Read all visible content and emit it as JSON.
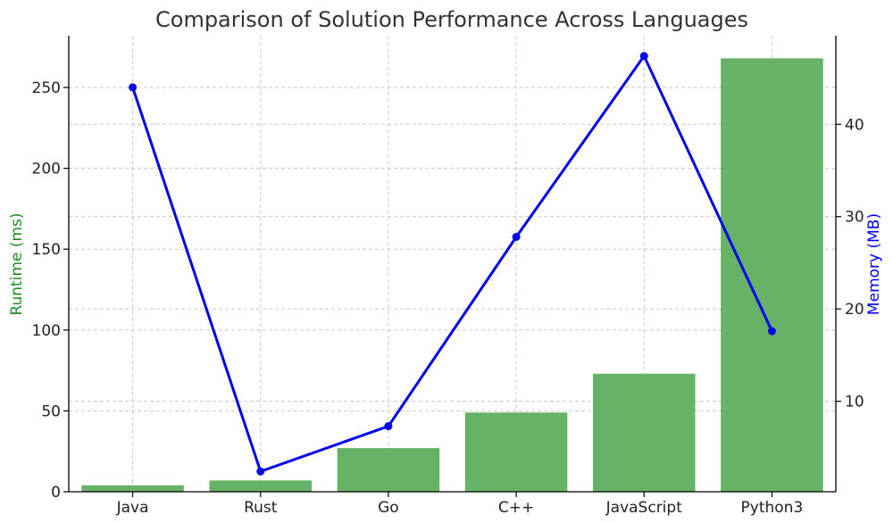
{
  "chart_data": {
    "type": "bar",
    "title": "Comparison of Solution Performance Across Languages",
    "xlabel": "",
    "categories": [
      "Java",
      "Rust",
      "Go",
      "C++",
      "JavaScript",
      "Python3"
    ],
    "series": [
      {
        "name": "",
        "type": "bar",
        "axis": "left",
        "color": "#66b266",
        "values": [
          4,
          7,
          27,
          49,
          73,
          268
        ]
      },
      {
        "name": "",
        "type": "line",
        "axis": "right",
        "color": "#0000ee",
        "marker": "circle",
        "values": [
          44.0,
          2.4,
          7.3,
          27.8,
          47.4,
          17.6
        ]
      }
    ],
    "left_axis": {
      "label": "Runtime (ms)",
      "color": "#228b22",
      "ylim": [
        0,
        282
      ],
      "ticks": [
        0,
        50,
        100,
        150,
        200,
        250
      ]
    },
    "right_axis": {
      "label": "Memory (MB)",
      "color": "#0000ee",
      "ylim": [
        0.2,
        49.6
      ],
      "ticks": [
        10,
        20,
        30,
        40
      ]
    },
    "grid": true,
    "legend": "none"
  }
}
